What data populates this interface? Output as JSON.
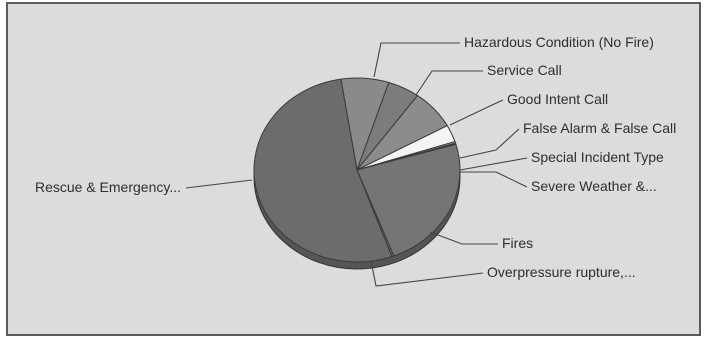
{
  "chart_data": {
    "type": "pie",
    "title": "",
    "slices": [
      {
        "label": "Hazardous Condition (No Fire)",
        "value": 7.5,
        "color": "#8a8a8a"
      },
      {
        "label": "Service Call",
        "value": 5.0,
        "color": "#7c7c7c"
      },
      {
        "label": "Good Intent Call",
        "value": 7.0,
        "color": "#8c8c8c"
      },
      {
        "label": "False Alarm & False Call",
        "value": 3.0,
        "color": "#f4f4f4"
      },
      {
        "label": "Special Incident Type",
        "value": 0.3,
        "color": "#9a9a9a"
      },
      {
        "label": "Severe Weather &...",
        "value": 0.2,
        "color": "#888888"
      },
      {
        "label": "Fires",
        "value": 23.7,
        "color": "#757575"
      },
      {
        "label": "Overpressure rupture,...",
        "value": 0.3,
        "color": "#6e6e6e"
      },
      {
        "label": "Rescue & Emergency...",
        "value": 53.0,
        "color": "#6c6c6c"
      }
    ],
    "legend": "none",
    "labels": "outside with leader lines"
  }
}
